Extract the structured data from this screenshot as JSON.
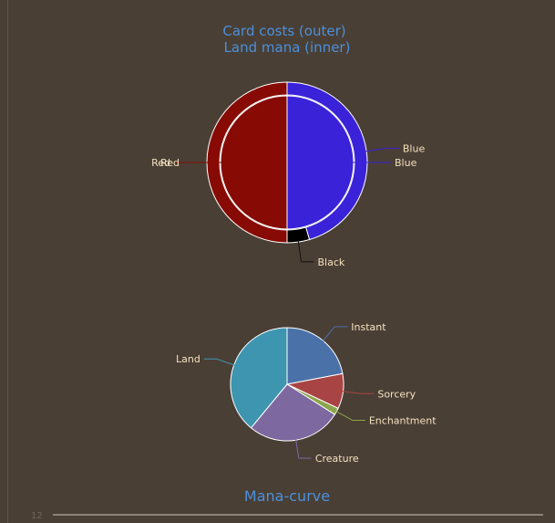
{
  "chart_data": [
    {
      "type": "pie",
      "title": "Card costs (outer)",
      "subtitle": "Land mana (inner)",
      "rings": [
        {
          "name": "outer",
          "slices": [
            {
              "label": "Blue",
              "value": 45.5,
              "color": "#3a22d9"
            },
            {
              "label": "Black",
              "value": 4.5,
              "color": "#000000"
            },
            {
              "label": "Red",
              "value": 50,
              "color": "#870b04"
            }
          ]
        },
        {
          "name": "inner",
          "slices": [
            {
              "label": "Blue",
              "value": 50,
              "color": "#3a22d9"
            },
            {
              "label": "Red",
              "value": 50,
              "color": "#870b04"
            }
          ]
        }
      ]
    },
    {
      "type": "pie",
      "title": "Mana-curve",
      "slices": [
        {
          "label": "Instant",
          "value": 22,
          "color": "#4a72a8"
        },
        {
          "label": "Sorcery",
          "value": 10,
          "color": "#a84544"
        },
        {
          "label": "Enchantment",
          "value": 2,
          "color": "#8aa54a"
        },
        {
          "label": "Creature",
          "value": 27,
          "color": "#7e68a0"
        },
        {
          "label": "Land",
          "value": 39,
          "color": "#3e95b0"
        }
      ]
    }
  ],
  "footer": {
    "page_number": "12"
  }
}
